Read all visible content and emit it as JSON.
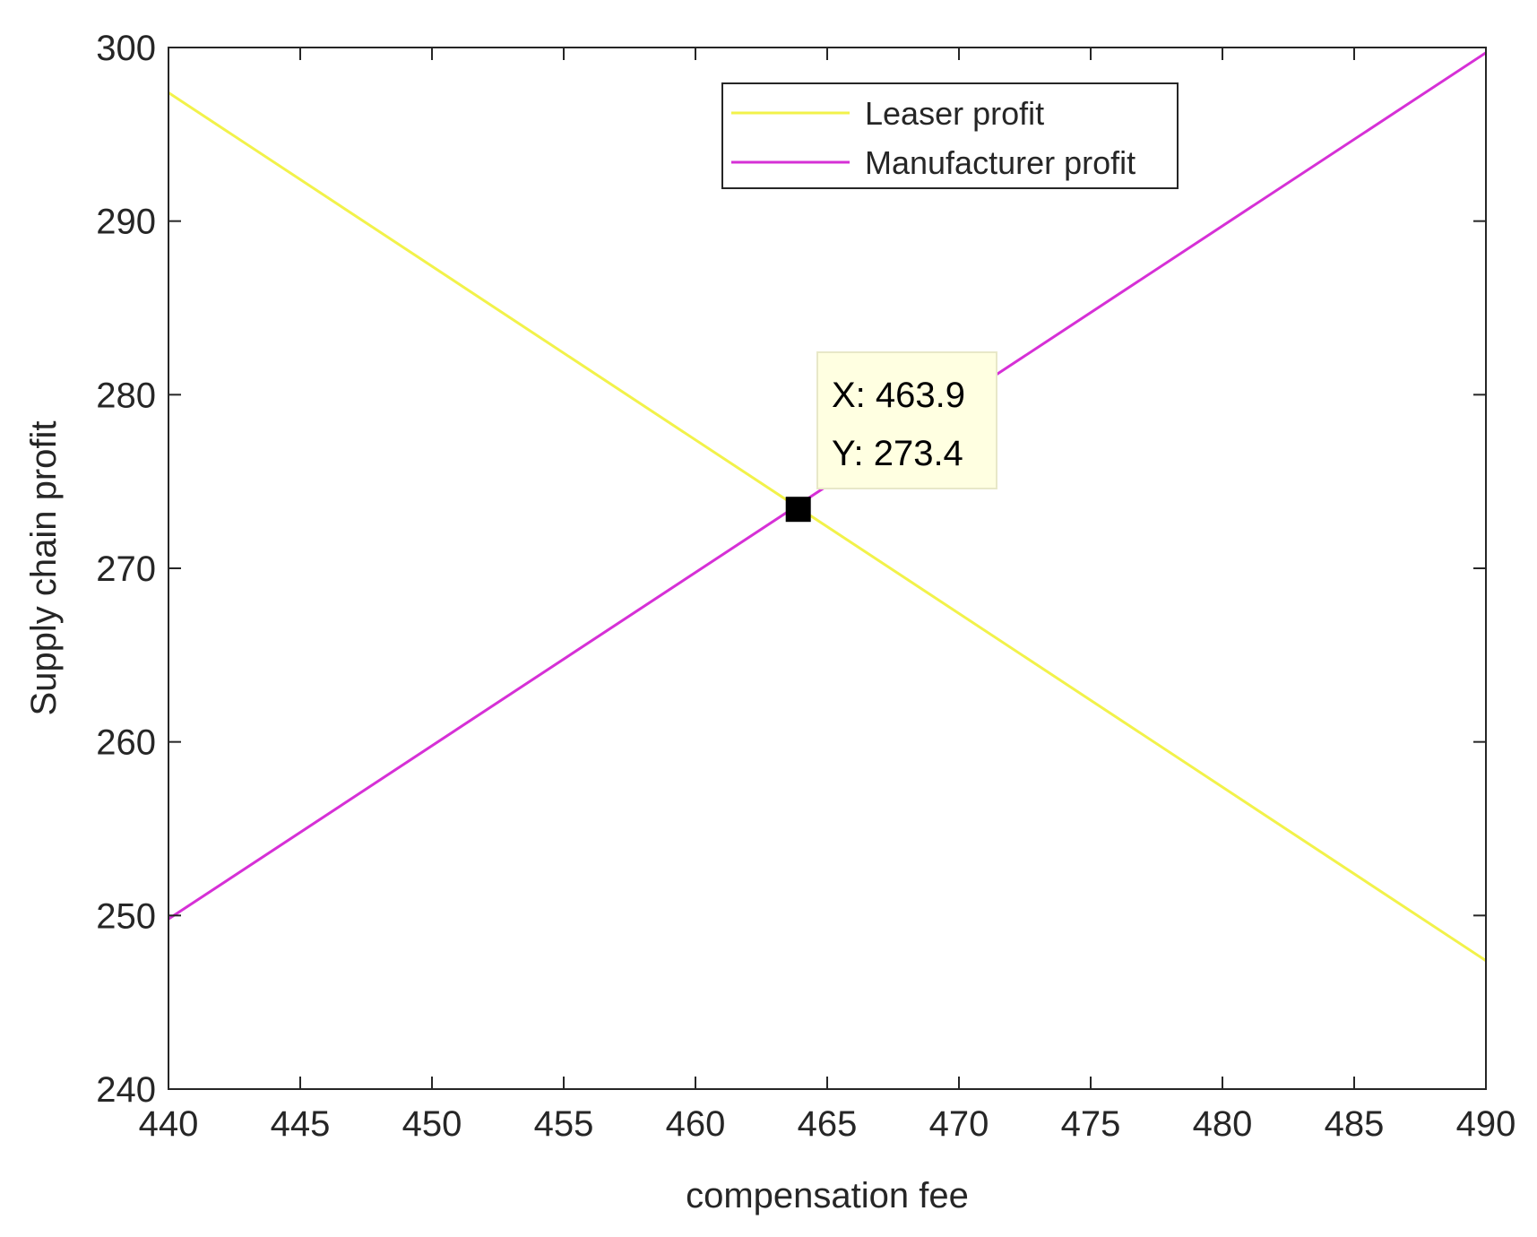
{
  "chart_data": {
    "type": "line",
    "xlabel": "compensation fee",
    "ylabel": "Supply chain profit",
    "xlim": [
      440,
      490
    ],
    "ylim": [
      240,
      300
    ],
    "xticks": [
      440,
      445,
      450,
      455,
      460,
      465,
      470,
      475,
      480,
      485,
      490
    ],
    "yticks": [
      240,
      250,
      260,
      270,
      280,
      290,
      300
    ],
    "grid": false,
    "legend_position": "top-right",
    "series": [
      {
        "name": "Leaser profit",
        "color": "#f2f24a",
        "x": [
          440,
          490
        ],
        "y": [
          297.4,
          247.4
        ]
      },
      {
        "name": "Manufacturer profit",
        "color": "#d630d6",
        "x": [
          440,
          490
        ],
        "y": [
          249.8,
          299.7
        ]
      }
    ],
    "datatip": {
      "x": 463.9,
      "y": 273.4,
      "x_text": "X: 463.9",
      "y_text": "Y: 273.4"
    }
  }
}
